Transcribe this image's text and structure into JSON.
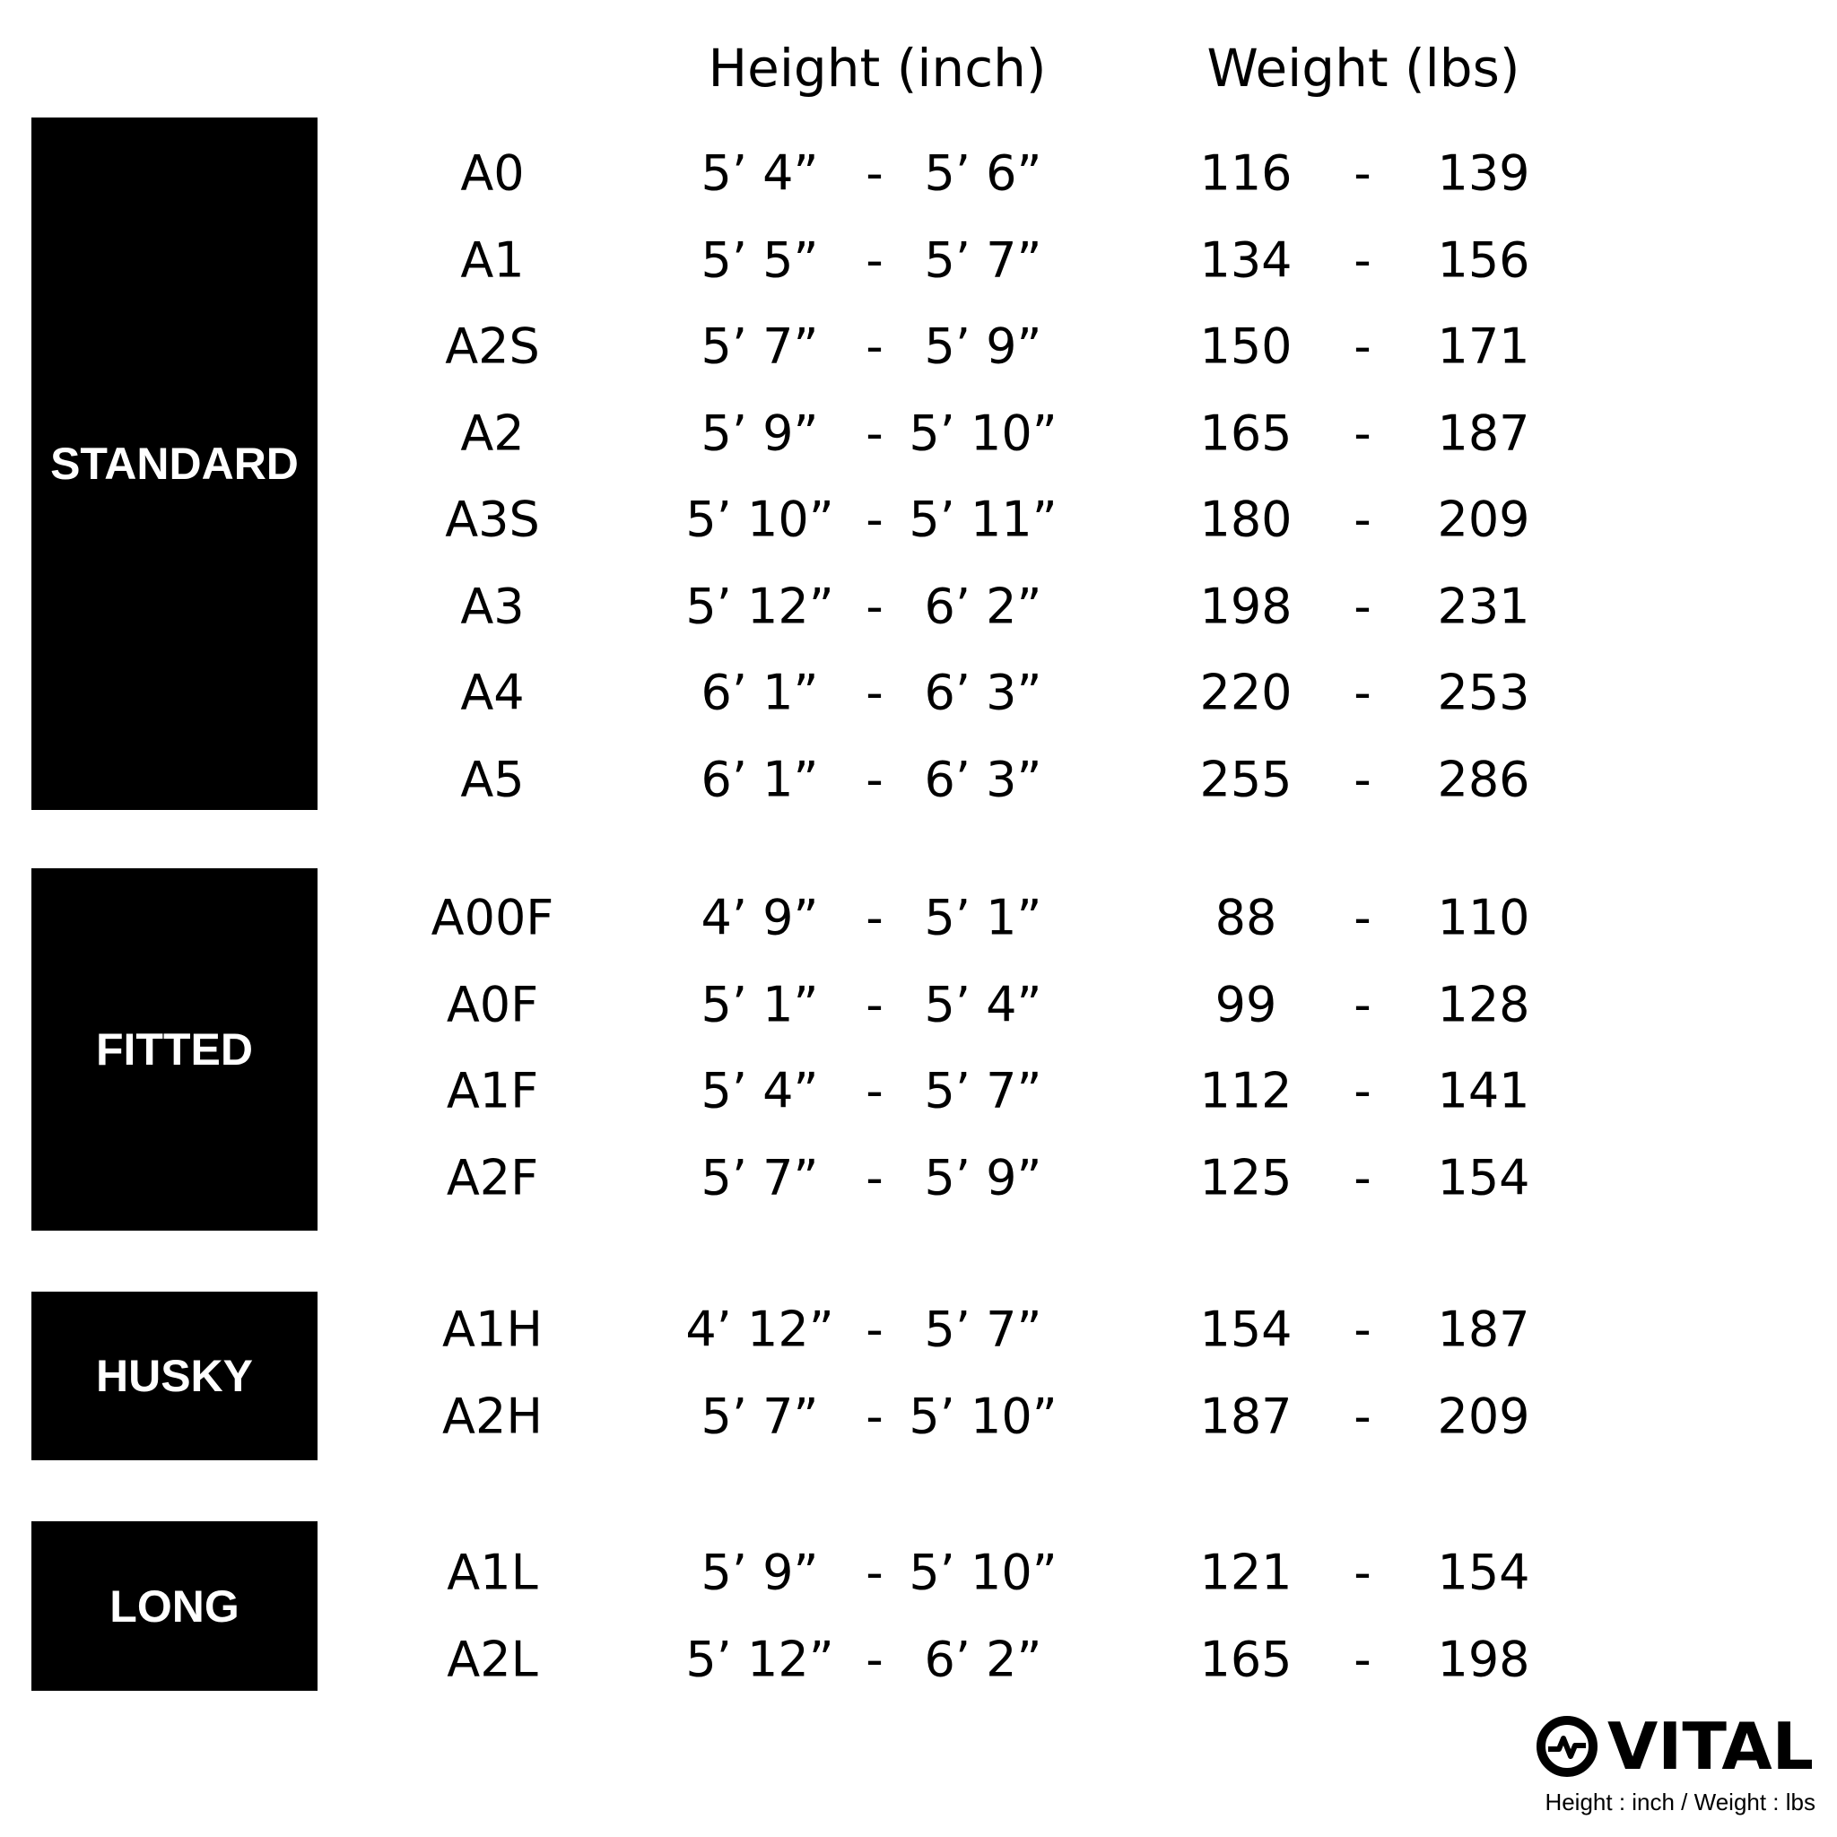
{
  "header": {
    "height": "Height (inch)",
    "weight": "Weight (lbs)"
  },
  "separator": "-",
  "groups": [
    {
      "name": "STANDARD",
      "rows": [
        [
          "A0",
          "5’ 4”",
          "5’ 6”",
          "116",
          "139"
        ],
        [
          "A1",
          "5’ 5”",
          "5’ 7”",
          "134",
          "156"
        ],
        [
          "A2S",
          "5’ 7”",
          "5’ 9”",
          "150",
          "171"
        ],
        [
          "A2",
          "5’ 9”",
          "5’ 10”",
          "165",
          "187"
        ],
        [
          "A3S",
          "5’ 10”",
          "5’ 11”",
          "180",
          "209"
        ],
        [
          "A3",
          "5’ 12”",
          "6’ 2”",
          "198",
          "231"
        ],
        [
          "A4",
          "6’ 1”",
          "6’ 3”",
          "220",
          "253"
        ],
        [
          "A5",
          "6’ 1”",
          "6’ 3”",
          "255",
          "286"
        ]
      ]
    },
    {
      "name": "FITTED",
      "rows": [
        [
          "A00F",
          "4’ 9”",
          "5’ 1”",
          "88",
          "110"
        ],
        [
          "A0F",
          "5’ 1”",
          "5’ 4”",
          "99",
          "128"
        ],
        [
          "A1F",
          "5’ 4”",
          "5’ 7”",
          "112",
          "141"
        ],
        [
          "A2F",
          "5’ 7”",
          "5’ 9”",
          "125",
          "154"
        ]
      ]
    },
    {
      "name": "HUSKY",
      "rows": [
        [
          "A1H",
          "4’ 12”",
          "5’ 7”",
          "154",
          "187"
        ],
        [
          "A2H",
          "5’ 7”",
          "5’ 10”",
          "187",
          "209"
        ]
      ]
    },
    {
      "name": "LONG",
      "rows": [
        [
          "A1L",
          "5’ 9”",
          "5’ 10”",
          "121",
          "154"
        ],
        [
          "A2L",
          "5’ 12”",
          "6’ 2”",
          "165",
          "198"
        ]
      ]
    }
  ],
  "logo": {
    "text": "VITAL",
    "note": "Height : inch / Weight : lbs"
  }
}
